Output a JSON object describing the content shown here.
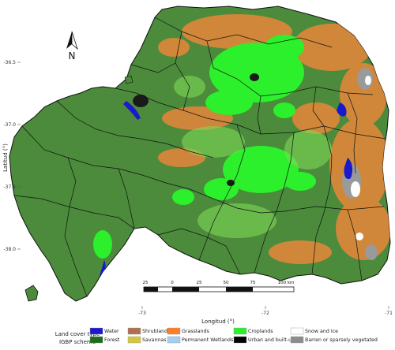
{
  "map": {
    "y_axis_title": "Latitud (°)",
    "x_axis_title": "Longitud (°)",
    "lat_ticks": [
      "-36.5",
      "-37.0",
      "-37.5",
      "-38.0"
    ],
    "lon_ticks": [
      "-73",
      "-72",
      "-71"
    ],
    "north_label": "N",
    "scale_labels": [
      "25",
      "0",
      "25",
      "50",
      "75",
      "100 km"
    ]
  },
  "legend": {
    "title_line1": "Land cover type",
    "title_line2": "IGBP scheme",
    "items": [
      {
        "label": "Water",
        "color": "#1a1acc"
      },
      {
        "label": "Forest",
        "color": "#1e6b1e"
      },
      {
        "label": "Shrublands",
        "color": "#b07050"
      },
      {
        "label": "Savannas",
        "color": "#d4c640"
      },
      {
        "label": "Grasslands",
        "color": "#ff7f24"
      },
      {
        "label": "Permanent Wetlands",
        "color": "#a6cef0"
      },
      {
        "label": "Croplands",
        "color": "#2bf02b"
      },
      {
        "label": "Urban and built-up",
        "color": "#000000"
      },
      {
        "label": "Snow and Ice",
        "color": "#ffffff"
      },
      {
        "label": "Barren or sparsely vegetated",
        "color": "#8c8c8c"
      }
    ]
  },
  "colors": {
    "forest_base": "#4b8b3b",
    "region_border": "#000000"
  }
}
